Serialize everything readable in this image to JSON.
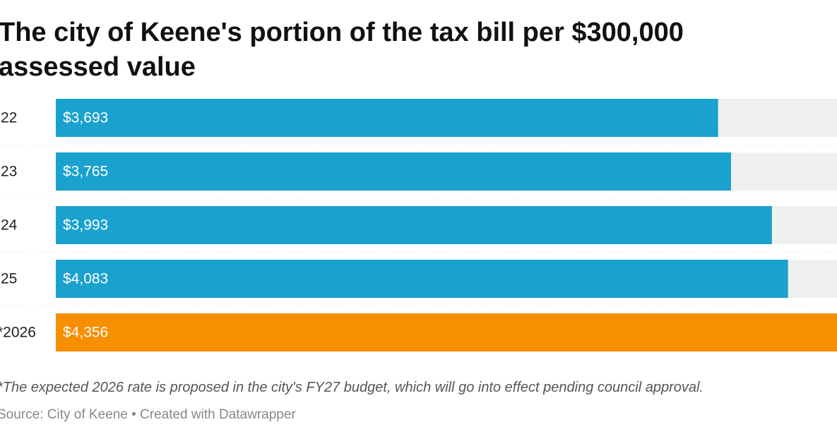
{
  "chart_data": {
    "type": "bar",
    "title": "The city of Keene's portion of the tax bill per $300,000 assessed value",
    "categories": [
      "22",
      "23",
      "24",
      "25",
      "*2026"
    ],
    "values": [
      3693,
      3765,
      3993,
      4083,
      4356
    ],
    "value_labels": [
      "$3,693",
      "$3,765",
      "$3,993",
      "$4,083",
      "$4,356"
    ],
    "colors": [
      "#1aa1cd",
      "#1aa1cd",
      "#1aa1cd",
      "#1aa1cd",
      "#f78f00"
    ],
    "note": "*The expected 2026 rate is proposed in the city's FY27 budget, which will go into effect pending council approval.",
    "source": "Source: City of Keene • Created with Datawrapper"
  }
}
